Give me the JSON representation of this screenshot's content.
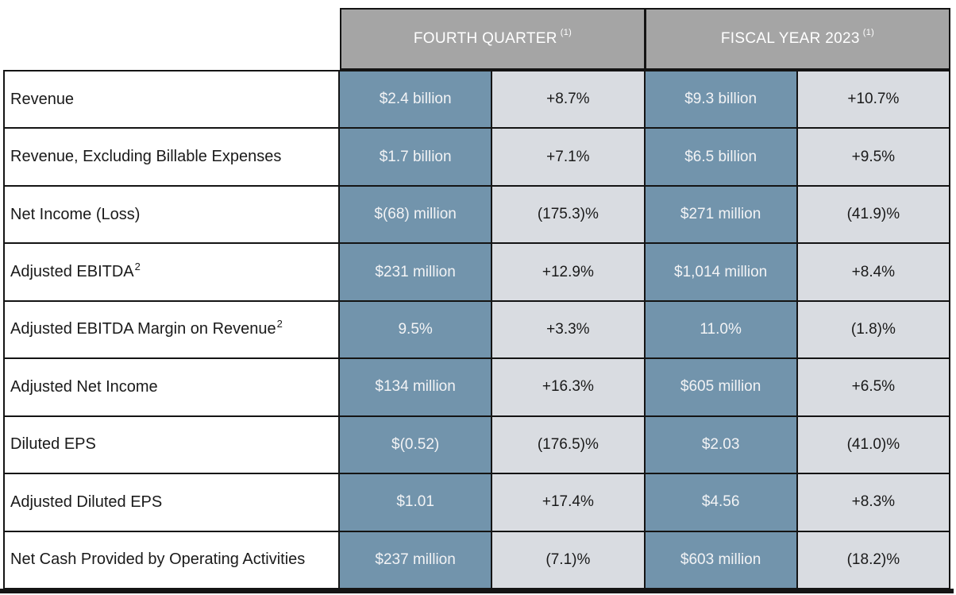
{
  "table": {
    "column_groups": [
      {
        "label": "FOURTH QUARTER",
        "footnote": "(1)"
      },
      {
        "label": "FISCAL YEAR 2023",
        "footnote": "(1)"
      }
    ],
    "rows": [
      {
        "label": "Revenue",
        "footnote": "",
        "q4_value": "$2.4 billion",
        "q4_change": "+8.7%",
        "fy_value": "$9.3 billion",
        "fy_change": "+10.7%"
      },
      {
        "label": "Revenue, Excluding Billable Expenses",
        "footnote": "",
        "q4_value": "$1.7 billion",
        "q4_change": "+7.1%",
        "fy_value": "$6.5 billion",
        "fy_change": "+9.5%"
      },
      {
        "label": "Net Income (Loss)",
        "footnote": "",
        "q4_value": "$(68) million",
        "q4_change": "(175.3)%",
        "fy_value": "$271 million",
        "fy_change": "(41.9)%"
      },
      {
        "label": "Adjusted EBITDA",
        "footnote": "2",
        "q4_value": "$231 million",
        "q4_change": "+12.9%",
        "fy_value": "$1,014 million",
        "fy_change": "+8.4%"
      },
      {
        "label": "Adjusted EBITDA Margin on Revenue",
        "footnote": "2",
        "q4_value": "9.5%",
        "q4_change": "+3.3%",
        "fy_value": "11.0%",
        "fy_change": "(1.8)%"
      },
      {
        "label": "Adjusted Net Income",
        "footnote": "",
        "q4_value": "$134 million",
        "q4_change": "+16.3%",
        "fy_value": "$605 million",
        "fy_change": "+6.5%"
      },
      {
        "label": "Diluted EPS",
        "footnote": "",
        "q4_value": "$(0.52)",
        "q4_change": "(176.5)%",
        "fy_value": "$2.03",
        "fy_change": "(41.0)%"
      },
      {
        "label": "Adjusted Diluted EPS",
        "footnote": "",
        "q4_value": "$1.01",
        "q4_change": "+17.4%",
        "fy_value": "$4.56",
        "fy_change": "+8.3%"
      },
      {
        "label": "Net Cash Provided by Operating Activities",
        "footnote": "",
        "q4_value": "$237 million",
        "q4_change": "(7.1)%",
        "fy_value": "$603 million",
        "fy_change": "(18.2)%"
      }
    ],
    "colors": {
      "header_bg": "#a5a5a5",
      "value_bg": "#7294ac",
      "change_bg": "#d9dce1",
      "border": "#141414",
      "value_text": "#f2f3f5",
      "label_text": "#1a1a1a"
    }
  }
}
